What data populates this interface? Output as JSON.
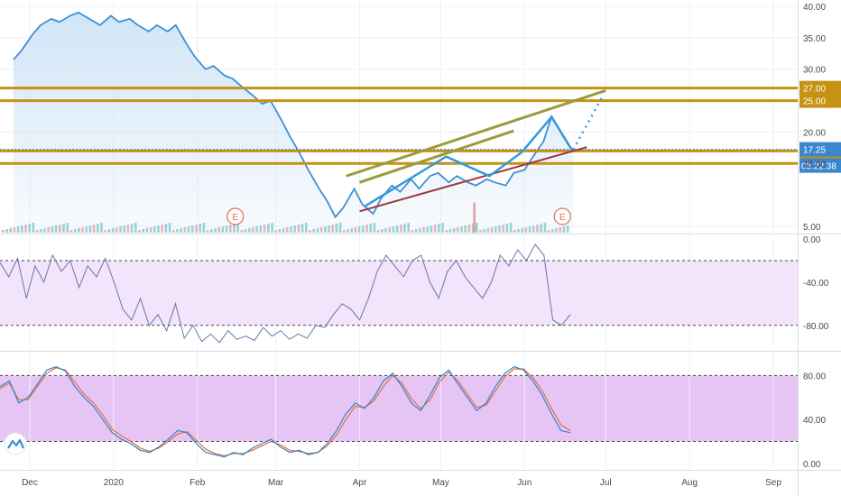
{
  "chart_data": [
    {
      "type": "line",
      "panel": "price",
      "yticks": [
        "40.00",
        "35.00",
        "30.00",
        "20.00",
        "15.00",
        "5.00"
      ],
      "ylim": [
        4,
        41
      ],
      "grid": true,
      "price_series": [
        [
          "2019-11-25",
          31.5
        ],
        [
          "2019-11-28",
          33.0
        ],
        [
          "2019-12-02",
          35.5
        ],
        [
          "2019-12-05",
          37.0
        ],
        [
          "2019-12-09",
          38.0
        ],
        [
          "2019-12-12",
          37.5
        ],
        [
          "2019-12-16",
          38.5
        ],
        [
          "2019-12-19",
          39.0
        ],
        [
          "2019-12-23",
          38.0
        ],
        [
          "2019-12-27",
          37.0
        ],
        [
          "2019-12-31",
          38.5
        ],
        [
          "2020-01-03",
          37.5
        ],
        [
          "2020-01-07",
          38.0
        ],
        [
          "2020-01-10",
          37.0
        ],
        [
          "2020-01-14",
          36.0
        ],
        [
          "2020-01-17",
          37.0
        ],
        [
          "2020-01-21",
          36.0
        ],
        [
          "2020-01-24",
          37.0
        ],
        [
          "2020-01-28",
          34.0
        ],
        [
          "2020-01-31",
          32.0
        ],
        [
          "2020-02-04",
          30.0
        ],
        [
          "2020-02-07",
          30.5
        ],
        [
          "2020-02-11",
          29.0
        ],
        [
          "2020-02-14",
          28.5
        ],
        [
          "2020-02-18",
          27.0
        ],
        [
          "2020-02-21",
          26.0
        ],
        [
          "2020-02-25",
          24.5
        ],
        [
          "2020-02-28",
          25.0
        ],
        [
          "2020-03-03",
          22.0
        ],
        [
          "2020-03-06",
          19.5
        ],
        [
          "2020-03-10",
          16.5
        ],
        [
          "2020-03-13",
          14.0
        ],
        [
          "2020-03-17",
          11.0
        ],
        [
          "2020-03-20",
          9.0
        ],
        [
          "2020-03-23",
          6.5
        ],
        [
          "2020-03-26",
          8.0
        ],
        [
          "2020-03-30",
          11.0
        ],
        [
          "2020-04-02",
          8.5
        ],
        [
          "2020-04-06",
          7.0
        ],
        [
          "2020-04-09",
          9.5
        ],
        [
          "2020-04-13",
          11.5
        ],
        [
          "2020-04-16",
          10.5
        ],
        [
          "2020-04-20",
          12.5
        ],
        [
          "2020-04-23",
          11.0
        ],
        [
          "2020-04-27",
          13.0
        ],
        [
          "2020-04-30",
          13.5
        ],
        [
          "2020-05-04",
          12.0
        ],
        [
          "2020-05-07",
          13.0
        ],
        [
          "2020-05-11",
          12.0
        ],
        [
          "2020-05-14",
          11.5
        ],
        [
          "2020-05-18",
          12.5
        ],
        [
          "2020-05-21",
          12.0
        ],
        [
          "2020-05-25",
          11.5
        ],
        [
          "2020-05-28",
          13.5
        ],
        [
          "2020-06-01",
          14.0
        ],
        [
          "2020-06-04",
          16.0
        ],
        [
          "2020-06-08",
          18.5
        ],
        [
          "2020-06-11",
          22.5
        ],
        [
          "2020-06-15",
          19.5
        ],
        [
          "2020-06-18",
          17.5
        ],
        [
          "2020-06-19",
          17.25
        ]
      ],
      "price_levels": [
        {
          "value": 27.0,
          "label": "27.00"
        },
        {
          "value": 25.0,
          "label": "25.00"
        },
        {
          "value": 17.0,
          "label": "17.00"
        },
        {
          "value": 15.0,
          "label": "15.00"
        }
      ],
      "last_price": "17.25",
      "countdown": "03:22:38",
      "earnings_markers": [
        "E",
        "E"
      ],
      "volume_spike": [
        "2020-05-13",
        9.5
      ],
      "colors": {
        "price": "#3d8fd6",
        "area": "#cfe4f6",
        "levels": "#c69214",
        "last": "#3a86cf",
        "pattern": "#3399dd",
        "support": "#a1363a",
        "resistance": "#9b9b3c",
        "volume_up": "#66c2bd",
        "volume_down": "#e98f8f"
      }
    },
    {
      "type": "line",
      "panel": "williams-r",
      "yticks": [
        "0.00",
        "-40.00",
        "-80.00"
      ],
      "ylim": [
        -100,
        0
      ],
      "bands": [
        -20,
        -80
      ],
      "series": [
        {
          "values": [
            -22,
            -35,
            -18,
            -55,
            -25,
            -40,
            -15,
            -30,
            -20,
            -45,
            -25,
            -35,
            -18,
            -40,
            -65,
            -75,
            -55,
            -80,
            -70,
            -85,
            -60,
            -92,
            -80,
            -95,
            -88,
            -96,
            -85,
            -93,
            -90,
            -94,
            -82,
            -90,
            -85,
            -93,
            -88,
            -92,
            -80,
            -82,
            -70,
            -60,
            -65,
            -75,
            -55,
            -30,
            -15,
            -25,
            -35,
            -20,
            -15,
            -40,
            -55,
            -30,
            -20,
            -35,
            -45,
            -55,
            -40,
            -15,
            -25,
            -10,
            -20,
            -5,
            -15,
            -75,
            -80,
            -70
          ]
        }
      ],
      "colors": {
        "line": "#6f73a8",
        "band": "#f1e4fb"
      }
    },
    {
      "type": "line",
      "panel": "stochastic",
      "yticks": [
        "80.00",
        "40.00",
        "0.00"
      ],
      "ylim": [
        -5,
        100
      ],
      "bands": [
        80,
        20
      ],
      "series": [
        {
          "values": [
            70,
            75,
            55,
            60,
            72,
            85,
            88,
            84,
            70,
            60,
            52,
            40,
            28,
            22,
            18,
            12,
            10,
            15,
            22,
            30,
            28,
            18,
            10,
            8,
            6,
            10,
            8,
            14,
            18,
            22,
            15,
            10,
            12,
            8,
            10,
            18,
            30,
            45,
            55,
            50,
            60,
            75,
            82,
            70,
            55,
            48,
            62,
            78,
            85,
            72,
            60,
            48,
            55,
            70,
            82,
            88,
            85,
            75,
            62,
            45,
            30,
            28
          ]
        },
        {
          "values": [
            68,
            73,
            58,
            58,
            70,
            82,
            87,
            85,
            74,
            63,
            55,
            44,
            31,
            25,
            20,
            14,
            11,
            14,
            20,
            27,
            29,
            21,
            13,
            9,
            7,
            9,
            9,
            12,
            16,
            20,
            17,
            12,
            11,
            9,
            10,
            16,
            26,
            40,
            52,
            51,
            57,
            70,
            80,
            73,
            59,
            50,
            58,
            74,
            83,
            75,
            63,
            51,
            53,
            66,
            79,
            86,
            86,
            78,
            66,
            50,
            35,
            30
          ]
        }
      ],
      "colors": {
        "k": "#2f86cc",
        "d": "#e56d3a",
        "band": "#e6c5f5"
      }
    }
  ],
  "time_axis": [
    "Dec",
    "2020",
    "Feb",
    "Mar",
    "Apr",
    "May",
    "Jun",
    "Jul",
    "Aug",
    "Sep"
  ],
  "logo": "chart-logo-icon"
}
